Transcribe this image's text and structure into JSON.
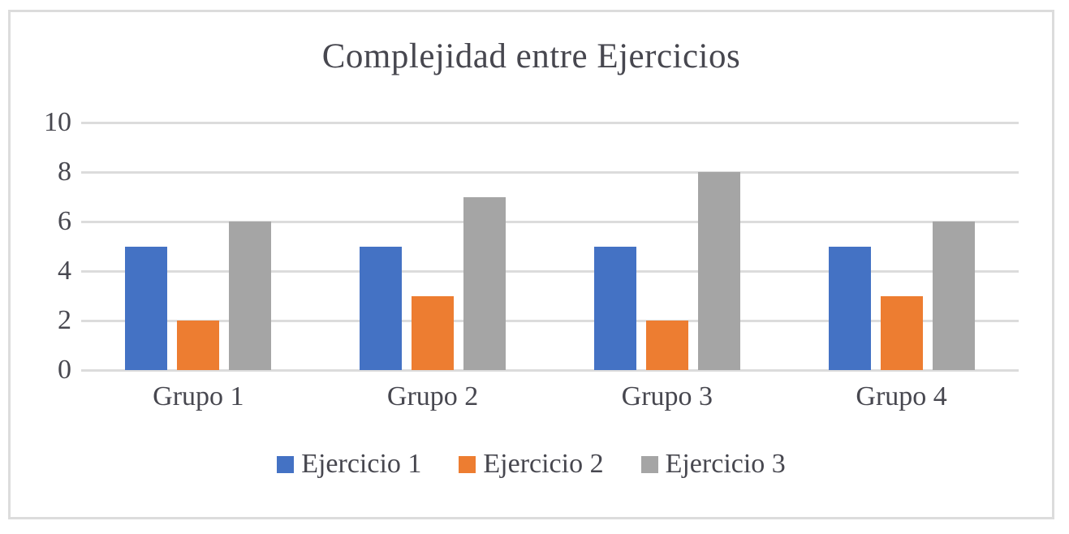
{
  "frame": {
    "background": "#ffffff",
    "border_color": "#dcdcdc"
  },
  "chart_data": {
    "type": "bar",
    "title": "Complejidad entre Ejercicios",
    "categories": [
      "Grupo 1",
      "Grupo 2",
      "Grupo 3",
      "Grupo 4"
    ],
    "series": [
      {
        "name": "Ejercicio 1",
        "color": "#4472C4",
        "values": [
          5,
          5,
          5,
          5
        ]
      },
      {
        "name": "Ejercicio 2",
        "color": "#ED7D31",
        "values": [
          2,
          3,
          2,
          3
        ]
      },
      {
        "name": "Ejercicio 3",
        "color": "#A5A5A5",
        "values": [
          6,
          7,
          8,
          6
        ]
      }
    ],
    "yticks": [
      0,
      2,
      4,
      6,
      8,
      10
    ],
    "ylim": [
      0,
      10
    ],
    "xlabel": "",
    "ylabel": "",
    "grid": true,
    "gridline_color": "#dcdcdc",
    "text_color": "#47474f",
    "legend_position": "bottom"
  }
}
